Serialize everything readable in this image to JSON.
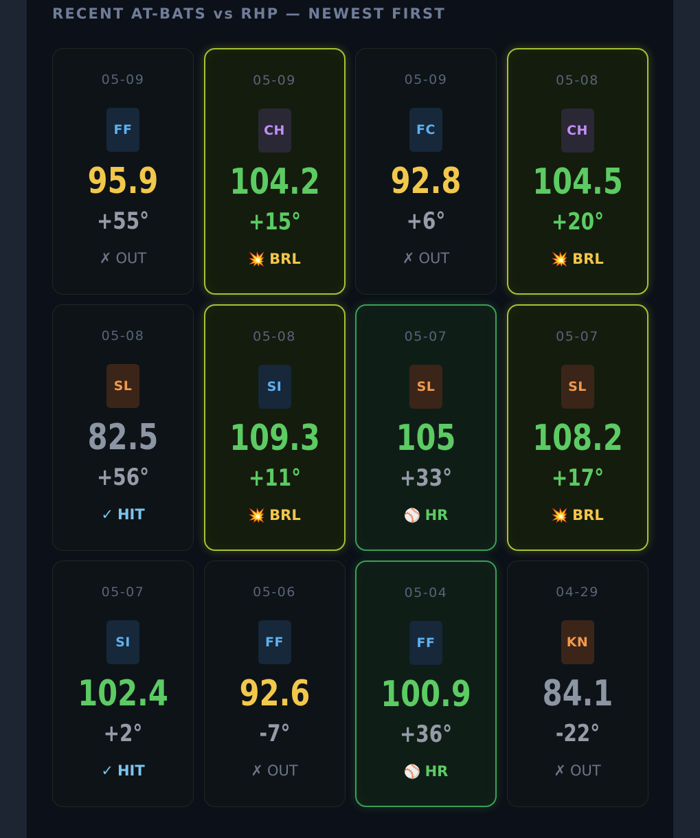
{
  "header": {
    "title": "RECENT AT-BATS vs RHP — NEWEST FIRST"
  },
  "colors": {
    "barrel_border": "#a8c233",
    "homerun_border": "#3d9f55",
    "yellow_velo": "#f2c84b",
    "green_velo": "#5ccb63",
    "gray_velo": "#8c95a3",
    "pitch_blue": "#5fb0f0",
    "pitch_purple": "#c48ef5",
    "pitch_orange": "#f39a4e"
  },
  "result_icons": {
    "OUT": "✗",
    "BRL": "💥",
    "HIT": "✓",
    "HR": "⚾"
  },
  "at_bats": [
    {
      "date": "05-09",
      "pitch": "FF",
      "pitch_color": "blue",
      "velo": "95.9",
      "velo_color": "yellow",
      "angle": "+55°",
      "angle_color": "gray",
      "result_icon": "✗",
      "result": "OUT",
      "result_type": "out"
    },
    {
      "date": "05-09",
      "pitch": "CH",
      "pitch_color": "purple",
      "velo": "104.2",
      "velo_color": "green",
      "angle": "+15°",
      "angle_color": "green",
      "result_icon": "💥",
      "result": "BRL",
      "result_type": "brl"
    },
    {
      "date": "05-09",
      "pitch": "FC",
      "pitch_color": "blue",
      "velo": "92.8",
      "velo_color": "yellow",
      "angle": "+6°",
      "angle_color": "gray",
      "result_icon": "✗",
      "result": "OUT",
      "result_type": "out"
    },
    {
      "date": "05-08",
      "pitch": "CH",
      "pitch_color": "purple",
      "velo": "104.5",
      "velo_color": "green",
      "angle": "+20°",
      "angle_color": "green",
      "result_icon": "💥",
      "result": "BRL",
      "result_type": "brl"
    },
    {
      "date": "05-08",
      "pitch": "SL",
      "pitch_color": "orange",
      "velo": "82.5",
      "velo_color": "gray",
      "angle": "+56°",
      "angle_color": "gray",
      "result_icon": "✓",
      "result": "HIT",
      "result_type": "hit"
    },
    {
      "date": "05-08",
      "pitch": "SI",
      "pitch_color": "blue",
      "velo": "109.3",
      "velo_color": "green",
      "angle": "+11°",
      "angle_color": "green",
      "result_icon": "💥",
      "result": "BRL",
      "result_type": "brl"
    },
    {
      "date": "05-07",
      "pitch": "SL",
      "pitch_color": "orange",
      "velo": "105",
      "velo_color": "green",
      "angle": "+33°",
      "angle_color": "gray",
      "result_icon": "⚾",
      "result": "HR",
      "result_type": "hr"
    },
    {
      "date": "05-07",
      "pitch": "SL",
      "pitch_color": "orange",
      "velo": "108.2",
      "velo_color": "green",
      "angle": "+17°",
      "angle_color": "green",
      "result_icon": "💥",
      "result": "BRL",
      "result_type": "brl"
    },
    {
      "date": "05-07",
      "pitch": "SI",
      "pitch_color": "blue",
      "velo": "102.4",
      "velo_color": "green",
      "angle": "+2°",
      "angle_color": "gray",
      "result_icon": "✓",
      "result": "HIT",
      "result_type": "hit"
    },
    {
      "date": "05-06",
      "pitch": "FF",
      "pitch_color": "blue",
      "velo": "92.6",
      "velo_color": "yellow",
      "angle": "-7°",
      "angle_color": "gray",
      "result_icon": "✗",
      "result": "OUT",
      "result_type": "out"
    },
    {
      "date": "05-04",
      "pitch": "FF",
      "pitch_color": "blue",
      "velo": "100.9",
      "velo_color": "green",
      "angle": "+36°",
      "angle_color": "gray",
      "result_icon": "⚾",
      "result": "HR",
      "result_type": "hr"
    },
    {
      "date": "04-29",
      "pitch": "KN",
      "pitch_color": "orange",
      "velo": "84.1",
      "velo_color": "gray",
      "angle": "-22°",
      "angle_color": "gray",
      "result_icon": "✗",
      "result": "OUT",
      "result_type": "out"
    }
  ]
}
